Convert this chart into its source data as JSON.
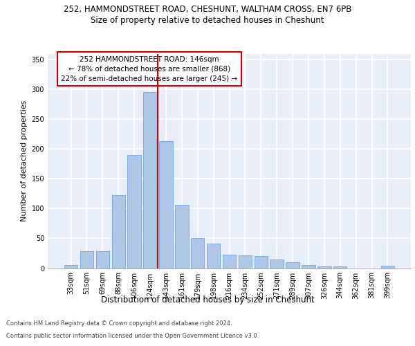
{
  "title_line1": "252, HAMMONDSTREET ROAD, CHESHUNT, WALTHAM CROSS, EN7 6PB",
  "title_line2": "Size of property relative to detached houses in Cheshunt",
  "xlabel": "Distribution of detached houses by size in Cheshunt",
  "ylabel": "Number of detached properties",
  "categories": [
    "33sqm",
    "51sqm",
    "69sqm",
    "88sqm",
    "106sqm",
    "124sqm",
    "143sqm",
    "161sqm",
    "179sqm",
    "198sqm",
    "216sqm",
    "234sqm",
    "252sqm",
    "271sqm",
    "289sqm",
    "307sqm",
    "326sqm",
    "344sqm",
    "362sqm",
    "381sqm",
    "399sqm"
  ],
  "values": [
    5,
    29,
    29,
    122,
    190,
    295,
    213,
    106,
    50,
    41,
    23,
    22,
    20,
    15,
    10,
    5,
    3,
    3,
    0,
    0,
    4
  ],
  "bar_color": "#aec6e8",
  "bar_edge_color": "#5b9bd5",
  "vline_x": 5.5,
  "vline_color": "#cc0000",
  "annotation_text": "252 HAMMONDSTREET ROAD: 146sqm\n← 78% of detached houses are smaller (868)\n22% of semi-detached houses are larger (245) →",
  "annotation_box_color": "#ffffff",
  "annotation_box_edge": "#cc0000",
  "ylim": [
    0,
    360
  ],
  "yticks": [
    0,
    50,
    100,
    150,
    200,
    250,
    300,
    350
  ],
  "footer_line1": "Contains HM Land Registry data © Crown copyright and database right 2024.",
  "footer_line2": "Contains public sector information licensed under the Open Government Licence v3.0.",
  "plot_bg_color": "#e8eef8",
  "title1_fontsize": 8.5,
  "title2_fontsize": 8.5,
  "xlabel_fontsize": 8.5,
  "ylabel_fontsize": 8,
  "tick_fontsize": 7,
  "annotation_fontsize": 7.5,
  "footer_fontsize": 6
}
